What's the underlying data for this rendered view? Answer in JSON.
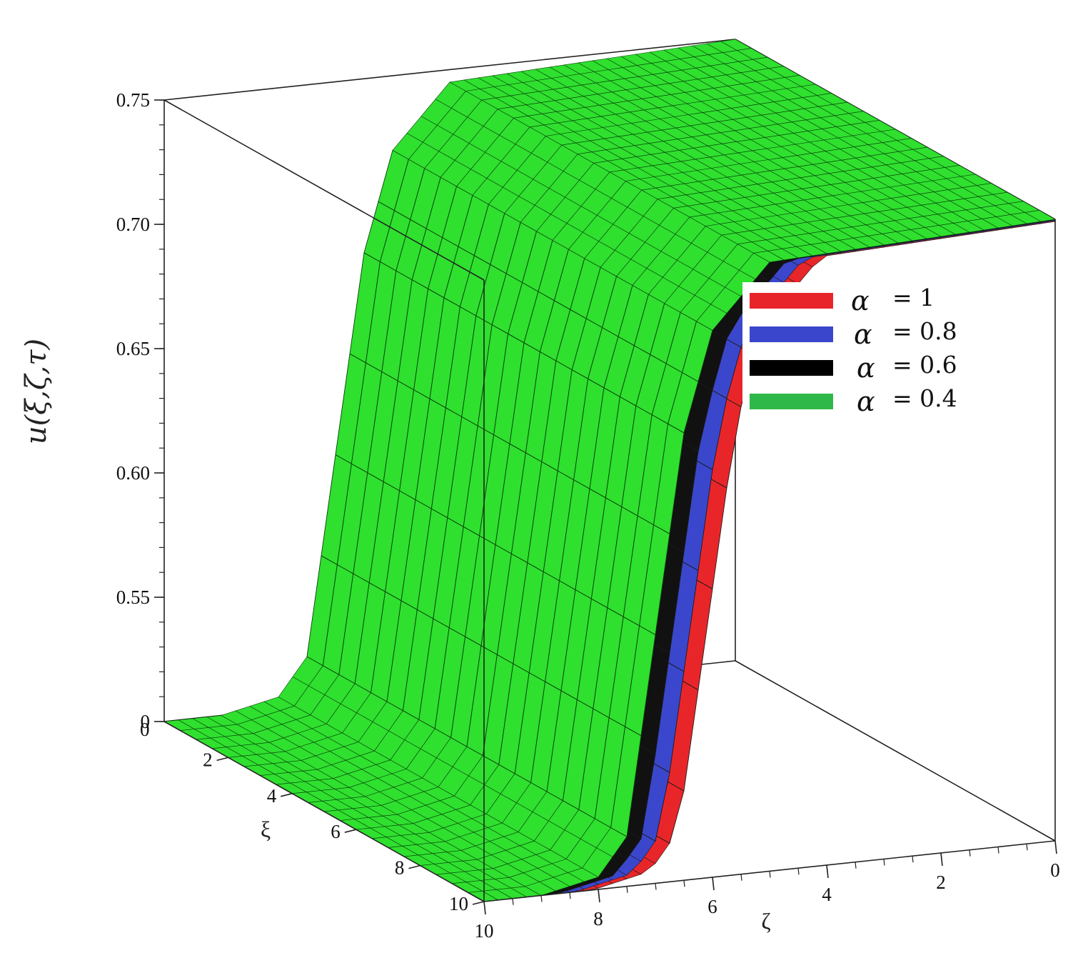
{
  "chart_data": {
    "type": "surface3d",
    "zlabel": "u(ξ,ζ,τ)",
    "xlabel": "ξ",
    "ylabel": "ζ",
    "z_ticks": [
      "0",
      "0.55",
      "0.60",
      "0.65",
      "0.70",
      "0.75"
    ],
    "xi_ticks": [
      "2",
      "4",
      "6",
      "8",
      "10"
    ],
    "zeta_ticks": [
      "10",
      "8",
      "6",
      "4",
      "2",
      "0"
    ],
    "xi_range": [
      0,
      10
    ],
    "zeta_range": [
      0,
      10
    ],
    "z_upper": 0.75,
    "z_lower": 0.5,
    "front_profile": [
      {
        "zeta": 10.0,
        "u": 0.5
      },
      {
        "zeta": 9.0,
        "u": 0.5
      },
      {
        "zeta": 8.0,
        "u": 0.505
      },
      {
        "zeta": 7.5,
        "u": 0.52
      },
      {
        "zeta": 7.0,
        "u": 0.6
      },
      {
        "zeta": 6.5,
        "u": 0.68
      },
      {
        "zeta": 6.0,
        "u": 0.72
      },
      {
        "zeta": 5.0,
        "u": 0.745
      },
      {
        "zeta": 0.0,
        "u": 0.75
      }
    ],
    "series": [
      {
        "name": "α = 1",
        "alpha": 1,
        "color": "#e8262a"
      },
      {
        "name": "α = 0.8",
        "alpha": 0.8,
        "color": "#3a47cc"
      },
      {
        "name": "α = 0.6",
        "alpha": 0.6,
        "color": "#000000"
      },
      {
        "name": "α = 0.4",
        "alpha": 0.4,
        "color": "#2fe02f"
      }
    ],
    "legend": {
      "placement": "right",
      "entries": [
        {
          "symbol": "α",
          "value": "= 1",
          "color": "#e8262a"
        },
        {
          "symbol": "α",
          "value": "= 0.8",
          "color": "#3a47cc"
        },
        {
          "symbol": "α",
          "value": "= 0.6",
          "color": "#000000"
        },
        {
          "symbol": "α",
          "value": "= 0.4",
          "color": "#2fb84a"
        }
      ]
    },
    "grid": false
  }
}
